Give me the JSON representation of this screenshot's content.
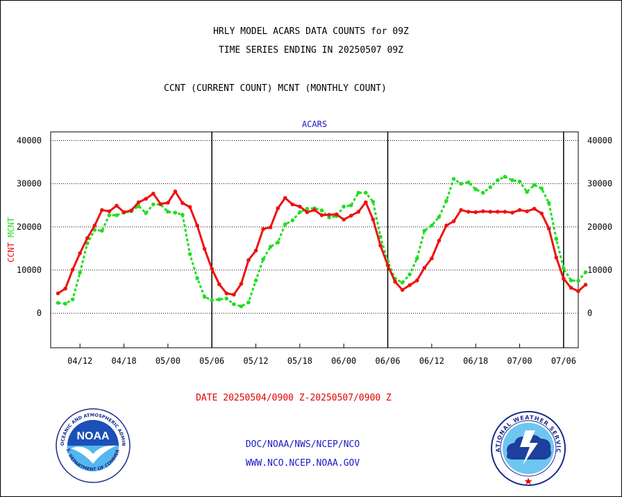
{
  "header": {
    "title_line1": "HRLY MODEL ACARS DATA COUNTS for 09Z",
    "title_line2": "TIME SERIES ENDING IN 20250507 09Z",
    "subtitle": "CCNT (CURRENT COUNT) MCNT (MONTHLY COUNT)"
  },
  "footer": {
    "date_range": "DATE 20250504/0900 Z-20250507/0900 Z",
    "credit_line1": "DOC/NOAA/NWS/NCEP/NCO",
    "credit_line2": "WWW.NCO.NCEP.NOAA.GOV"
  },
  "logos": {
    "noaa_text": "NOAA",
    "noaa_ring": "NATIONAL OCEANIC AND ATMOSPHERIC ADMINISTRATION",
    "noaa_ring_bottom": "U.S. DEPARTMENT OF COMMERCE",
    "nws_ring": "NATIONAL WEATHER SERVICE"
  },
  "colors": {
    "ccnt": "#ee1111",
    "mcnt": "#22dd22",
    "chart_title": "#1a1ac8",
    "grid": "#000000"
  },
  "chart_data": {
    "type": "line",
    "title": "ACARS",
    "ylabel_left": [
      "CCNT",
      "MCNT"
    ],
    "ylim": [
      -8000,
      42000
    ],
    "y_ticks": [
      40000,
      30000,
      20000,
      10000,
      0
    ],
    "y_tick_labels": [
      "40000",
      "30000",
      "20000",
      "10000",
      "0"
    ],
    "x_tick_labels": [
      "04/12",
      "04/18",
      "05/00",
      "05/06",
      "05/12",
      "05/18",
      "06/00",
      "06/06",
      "06/12",
      "06/18",
      "07/00",
      "07/06"
    ],
    "x_tick_hours": [
      3,
      9,
      15,
      21,
      27,
      33,
      39,
      45,
      51,
      57,
      63,
      69
    ],
    "x_range_hours": [
      -1,
      71
    ],
    "day_boundaries_hours": [
      21,
      45,
      69
    ],
    "grid": "horizontal-dotted",
    "series": [
      {
        "name": "CCNT",
        "values": [
          4600,
          5700,
          10100,
          13900,
          17400,
          20300,
          23900,
          23600,
          24900,
          23400,
          23800,
          25700,
          26500,
          27700,
          25300,
          25600,
          28200,
          25500,
          24600,
          20300,
          14900,
          10300,
          6700,
          4600,
          4300,
          6800,
          12300,
          14500,
          19500,
          19900,
          24300,
          26700,
          25200,
          24700,
          23400,
          23900,
          22700,
          22800,
          22900,
          21700,
          22600,
          23500,
          25700,
          21700,
          15700,
          11100,
          7300,
          5400,
          6500,
          7600,
          10500,
          12700,
          16800,
          20300,
          21300,
          23900,
          23500,
          23400,
          23600,
          23500,
          23500,
          23500,
          23300,
          23900,
          23600,
          24200,
          23100,
          19600,
          12900,
          8000,
          5900,
          5100,
          6600
        ]
      },
      {
        "name": "MCNT",
        "values": [
          2400,
          2200,
          3200,
          9400,
          16200,
          19300,
          19100,
          22700,
          22700,
          23300,
          23600,
          24800,
          23200,
          25200,
          25200,
          23500,
          23300,
          22800,
          13700,
          8100,
          3800,
          3000,
          3200,
          3400,
          2100,
          1600,
          2500,
          7600,
          12500,
          15400,
          16400,
          20600,
          21500,
          23400,
          24200,
          24300,
          23800,
          22200,
          22500,
          24700,
          25000,
          27900,
          27900,
          25800,
          17700,
          12000,
          8000,
          7100,
          9000,
          12700,
          19100,
          20300,
          22300,
          26000,
          31100,
          30000,
          30300,
          28700,
          27900,
          29200,
          30800,
          31600,
          30800,
          30500,
          28100,
          29700,
          28900,
          25500,
          17200,
          10400,
          7600,
          7500,
          9500
        ]
      }
    ]
  }
}
